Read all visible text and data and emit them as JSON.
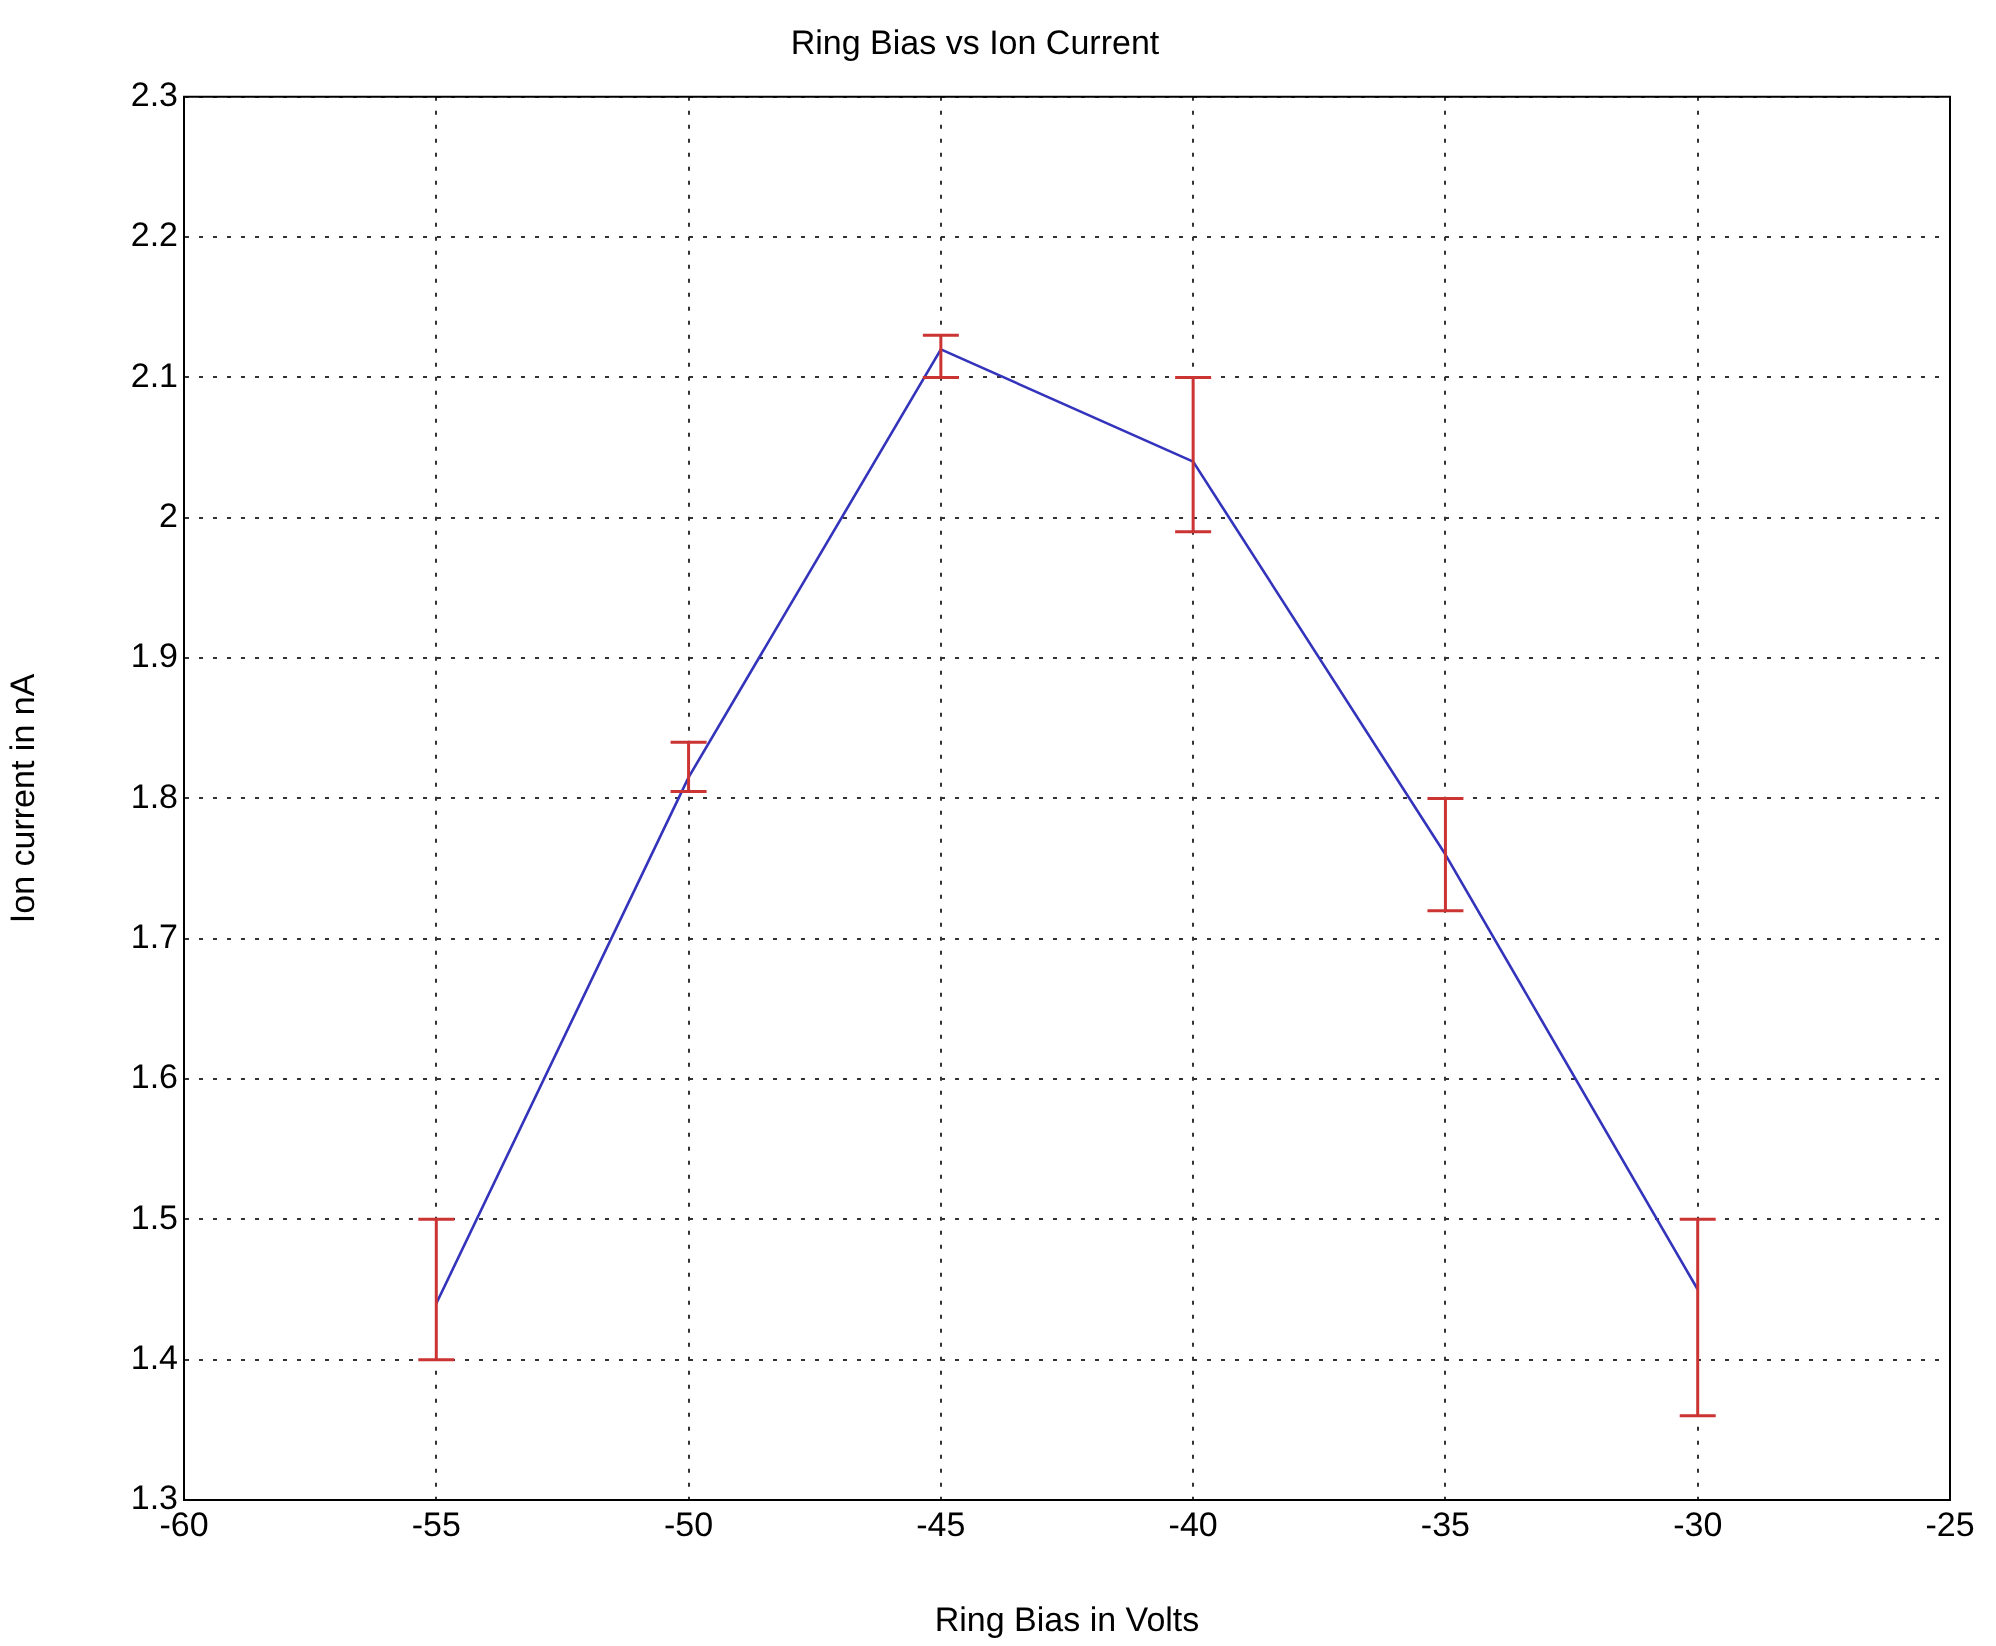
{
  "chart_data": {
    "type": "line",
    "title": "Ring Bias vs Ion Current",
    "xlabel": "Ring Bias in Volts",
    "ylabel": "Ion current in nA",
    "x": [
      -55,
      -50,
      -45,
      -40,
      -35,
      -30
    ],
    "series": [
      {
        "color": "#3333bb",
        "values": [
          1.44,
          1.815,
          2.12,
          2.04,
          1.76,
          1.45
        ],
        "errors": [
          [
            1.4,
            1.5
          ],
          [
            1.805,
            1.84
          ],
          [
            2.1,
            2.13
          ],
          [
            1.99,
            2.1
          ],
          [
            1.72,
            1.8
          ],
          [
            1.36,
            1.5
          ]
        ]
      }
    ],
    "xlim": [
      -60,
      -25
    ],
    "xticks": [
      -60,
      -55,
      -50,
      -45,
      -40,
      -35,
      -30,
      -25
    ],
    "ylim": [
      1.3,
      2.3
    ],
    "yticks": [
      1.3,
      1.4,
      1.5,
      1.6,
      1.7,
      1.8,
      1.9,
      2,
      2.1,
      2.2,
      2.3
    ],
    "grid": true,
    "line_style": "solid",
    "marker": "none",
    "legend": false
  }
}
